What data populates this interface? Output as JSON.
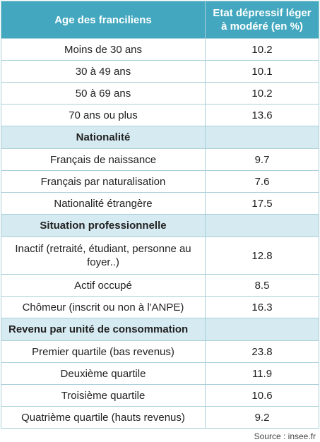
{
  "header": {
    "col1": "Age des franciliens",
    "col2": "Etat dépressif léger à modéré (en %)"
  },
  "sections": [
    {
      "title": "",
      "rows": [
        {
          "label": "Moins de 30 ans",
          "value": "10.2"
        },
        {
          "label": "30 à 49 ans",
          "value": "10.1"
        },
        {
          "label": "50 à 69 ans",
          "value": "10.2"
        },
        {
          "label": "70 ans ou plus",
          "value": "13.6"
        }
      ]
    },
    {
      "title": "Nationalité",
      "rows": [
        {
          "label": "Français de naissance",
          "value": "9.7"
        },
        {
          "label": "Français par naturalisation",
          "value": "7.6"
        },
        {
          "label": "Nationalité étrangère",
          "value": "17.5"
        }
      ]
    },
    {
      "title": "Situation professionnelle",
      "rows": [
        {
          "label": "Inactif (retraité, étudiant, personne au foyer..)",
          "value": "12.8"
        },
        {
          "label": "Actif occupé",
          "value": "8.5"
        },
        {
          "label": "Chômeur (inscrit ou non à l'ANPE)",
          "value": "16.3"
        }
      ]
    },
    {
      "title": "Revenu par unité de consommation",
      "rows": [
        {
          "label": "Premier quartile (bas revenus)",
          "value": "23.8"
        },
        {
          "label": "Deuxième quartile",
          "value": "11.9"
        },
        {
          "label": "Troisième quartile",
          "value": "10.6"
        },
        {
          "label": "Quatrième quartile (hauts revenus)",
          "value": "9.2"
        }
      ]
    }
  ],
  "source": "Source : insee.fr",
  "colors": {
    "header_bg": "#43a8bf",
    "section_bg": "#d6eaf1",
    "border": "#a9cfd9"
  }
}
